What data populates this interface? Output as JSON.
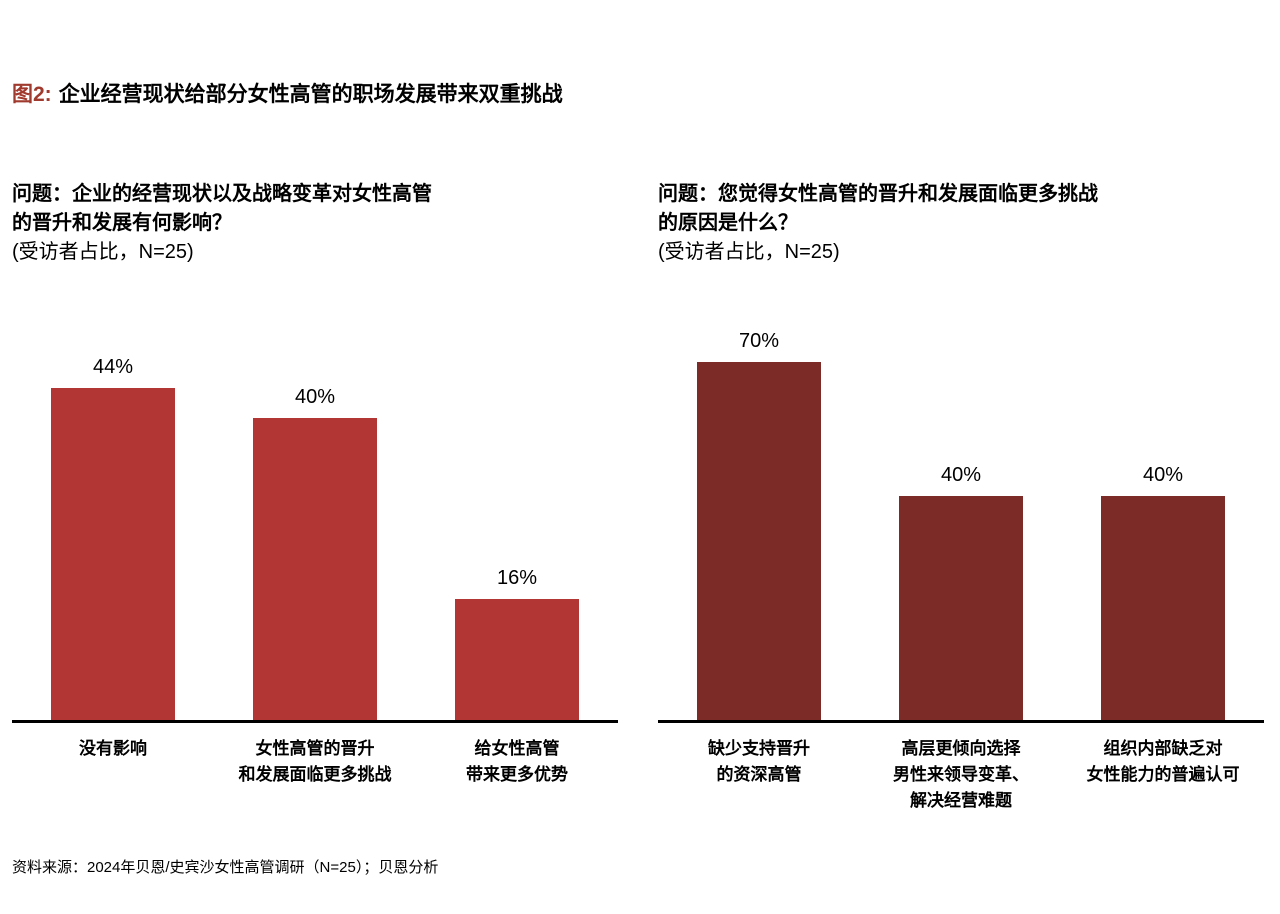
{
  "header": {
    "figure_label": "图2:",
    "title": "企业经营现状给部分女性高管的职场发展带来双重挑战"
  },
  "footer": {
    "source": "资料来源：2024年贝恩/史宾沙女性高管调研（N=25）；贝恩分析"
  },
  "colors": {
    "figure_label": "#A03A2E",
    "left_bar": "#B13634",
    "right_bar": "#7D2B27",
    "axis": "#000000",
    "text": "#000000",
    "background": "#FFFFFF"
  },
  "chart_data": [
    {
      "type": "bar",
      "title": "问题：企业的经营现状以及战略变革对女性高管的晋升和发展有何影响？",
      "title_lines": [
        "问题：企业的经营现状以及战略变革对女性高管",
        "的晋升和发展有何影响？"
      ],
      "subtitle": "(受访者占比，N=25)",
      "categories": [
        "没有影响",
        "女性高管的晋升和发展面临更多挑战",
        "给女性高管带来更多优势"
      ],
      "category_lines": [
        [
          "没有影响"
        ],
        [
          "女性高管的晋升",
          "和发展面临更多挑战"
        ],
        [
          "给女性高管",
          "带来更多优势"
        ]
      ],
      "values": [
        44,
        40,
        16
      ],
      "value_labels": [
        "44%",
        "40%",
        "16%"
      ],
      "unit": "%",
      "bar_color": "#B13634",
      "ylim": [
        0,
        52
      ],
      "xlabel": "",
      "ylabel": "",
      "grid": false,
      "legend": false
    },
    {
      "type": "bar",
      "title": "问题：您觉得女性高管的晋升和发展面临更多挑战的原因是什么？",
      "title_lines": [
        "问题：您觉得女性高管的晋升和发展面临更多挑战",
        "的原因是什么？"
      ],
      "subtitle": "(受访者占比，N=25)",
      "categories": [
        "缺少支持晋升的资深高管",
        "高层更倾向选择男性来领导变革、解决经营难题",
        "组织内部缺乏对女性能力的普遍认可"
      ],
      "category_lines": [
        [
          "缺少支持晋升",
          "的资深高管"
        ],
        [
          "高层更倾向选择",
          "男性来领导变革、",
          "解决经营难题"
        ],
        [
          "组织内部缺乏对",
          "女性能力的普遍认可"
        ]
      ],
      "values": [
        70,
        40,
        40
      ],
      "value_labels": [
        "70%",
        "40%",
        "40%"
      ],
      "unit": "%",
      "bar_color": "#7D2B27",
      "ylim": [
        0,
        70
      ],
      "xlabel": "",
      "ylabel": "",
      "grid": false,
      "legend": false
    }
  ]
}
